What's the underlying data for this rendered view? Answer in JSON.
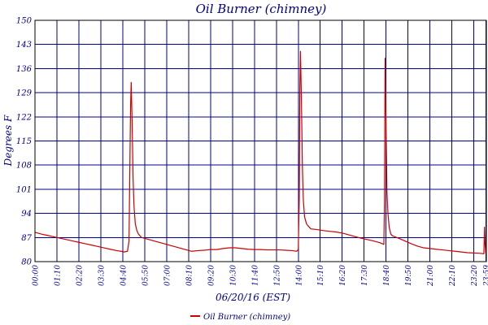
{
  "chart_data": {
    "type": "line",
    "title": "Oil Burner (chimney)",
    "xlabel": "06/20/16 (EST)",
    "ylabel": "Degrees F",
    "ylim": [
      80,
      150
    ],
    "yticks": [
      80,
      87,
      94,
      101,
      108,
      115,
      122,
      129,
      136,
      143,
      150
    ],
    "xlim": [
      0,
      1440
    ],
    "xticks": [
      {
        "t": 0,
        "label": "00:00"
      },
      {
        "t": 70,
        "label": "01:10"
      },
      {
        "t": 140,
        "label": "02:20"
      },
      {
        "t": 210,
        "label": "03:30"
      },
      {
        "t": 280,
        "label": "04:40"
      },
      {
        "t": 350,
        "label": "05:50"
      },
      {
        "t": 420,
        "label": "07:00"
      },
      {
        "t": 490,
        "label": "08:10"
      },
      {
        "t": 560,
        "label": "09:20"
      },
      {
        "t": 630,
        "label": "10:30"
      },
      {
        "t": 700,
        "label": "11:40"
      },
      {
        "t": 770,
        "label": "12:50"
      },
      {
        "t": 840,
        "label": "14:00"
      },
      {
        "t": 910,
        "label": "15:10"
      },
      {
        "t": 980,
        "label": "16:20"
      },
      {
        "t": 1050,
        "label": "17:30"
      },
      {
        "t": 1120,
        "label": "18:40"
      },
      {
        "t": 1190,
        "label": "19:50"
      },
      {
        "t": 1260,
        "label": "21:00"
      },
      {
        "t": 1330,
        "label": "22:10"
      },
      {
        "t": 1400,
        "label": "23:20"
      },
      {
        "t": 1439,
        "label": "23:59"
      }
    ],
    "grid": true,
    "legend_position": "bottom-center",
    "series": [
      {
        "name": "Oil Burner (chimney)",
        "color": "#cc0000",
        "x": [
          0,
          20,
          40,
          60,
          80,
          100,
          120,
          140,
          160,
          180,
          200,
          220,
          240,
          260,
          275,
          285,
          295,
          300,
          303,
          305,
          307,
          310,
          313,
          316,
          320,
          325,
          330,
          340,
          360,
          380,
          400,
          420,
          440,
          460,
          480,
          500,
          520,
          540,
          560,
          580,
          600,
          620,
          640,
          660,
          680,
          700,
          720,
          740,
          760,
          780,
          800,
          820,
          835,
          840,
          843,
          845,
          847,
          850,
          853,
          856,
          860,
          866,
          870,
          880,
          900,
          920,
          940,
          960,
          980,
          1000,
          1020,
          1040,
          1060,
          1080,
          1100,
          1113,
          1115,
          1117,
          1119,
          1121,
          1123,
          1126,
          1130,
          1135,
          1140,
          1160,
          1180,
          1200,
          1220,
          1240,
          1260,
          1280,
          1300,
          1320,
          1340,
          1360,
          1380,
          1400,
          1420,
          1432,
          1434,
          1436,
          1438
        ],
        "values": [
          88.5,
          88.0,
          87.6,
          87.2,
          86.8,
          86.4,
          86.0,
          85.6,
          85.2,
          84.8,
          84.4,
          84.0,
          83.6,
          83.2,
          83.0,
          82.8,
          83.0,
          86.0,
          110.0,
          125.0,
          132.0,
          120.0,
          104.0,
          96.0,
          91.0,
          89.0,
          88.0,
          87.0,
          86.5,
          86.0,
          85.5,
          85.0,
          84.5,
          84.0,
          83.5,
          83.0,
          83.2,
          83.3,
          83.5,
          83.5,
          83.8,
          84.0,
          84.0,
          83.8,
          83.6,
          83.5,
          83.5,
          83.4,
          83.4,
          83.4,
          83.3,
          83.2,
          83.0,
          83.5,
          98.0,
          130.0,
          141.0,
          127.0,
          108.0,
          98.0,
          93.0,
          91.0,
          90.5,
          89.5,
          89.3,
          89.0,
          88.8,
          88.6,
          88.3,
          87.8,
          87.3,
          86.8,
          86.4,
          86.0,
          85.5,
          85.0,
          98.0,
          139.0,
          126.0,
          112.0,
          100.0,
          94.0,
          90.0,
          88.0,
          87.5,
          86.8,
          86.0,
          85.2,
          84.5,
          84.0,
          83.8,
          83.6,
          83.4,
          83.2,
          83.0,
          82.8,
          82.6,
          82.5,
          82.4,
          82.3,
          90.0,
          85.0,
          82.3
        ]
      }
    ]
  }
}
